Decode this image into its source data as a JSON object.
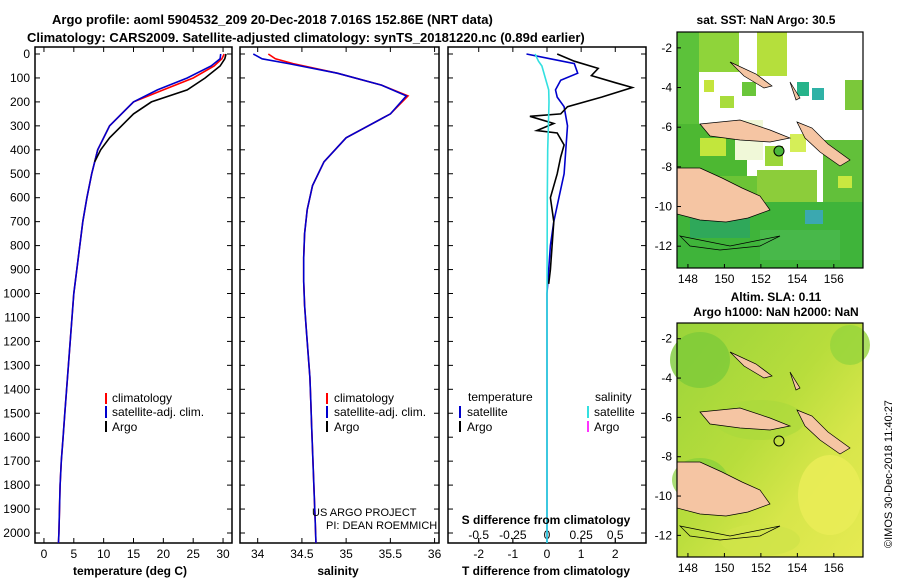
{
  "header": {
    "line1": "Argo profile: aoml 5904532_209 20-Dec-2018 7.016S 152.86E (NRT data)",
    "line2": "Climatology: CARS2009. Satellite-adjusted climatology: synTS_20181220.nc (0.89d earlier)"
  },
  "colors": {
    "climatology": "#ff0000",
    "satellite": "#0000cc",
    "argo": "#000000",
    "sat_salinity": "#33e0e0",
    "argo_salinity": "#ff33ff",
    "land": "#f5c5a3"
  },
  "depth_ticks": [
    "0",
    "100",
    "200",
    "300",
    "400",
    "500",
    "600",
    "700",
    "800",
    "900",
    "1000",
    "1100",
    "1200",
    "1300",
    "1400",
    "1500",
    "1600",
    "1700",
    "1800",
    "1900",
    "2000"
  ],
  "panel1": {
    "xlabel": "temperature (deg C)",
    "xticks": [
      "0",
      "5",
      "10",
      "15",
      "20",
      "25",
      "30"
    ],
    "legend": [
      "climatology",
      "satellite-adj. clim.",
      "Argo"
    ]
  },
  "panel2": {
    "xlabel": "salinity",
    "xticks": [
      "34",
      "34.5",
      "35",
      "35.5",
      "36"
    ],
    "legend": [
      "climatology",
      "satellite-adj. clim.",
      "Argo"
    ],
    "credit1": "US ARGO PROJECT",
    "credit2": "PI: DEAN ROEMMICH"
  },
  "panel3": {
    "xlabel": "T difference from climatology",
    "top_label": "S difference from climatology",
    "xticks": [
      "-2",
      "-1",
      "0",
      "1",
      "2"
    ],
    "sticks": [
      "-0.5",
      "-0.25",
      "0",
      "0.25",
      "0.5"
    ],
    "legend_left_title": "temperature",
    "legend_left": [
      "satellite",
      "Argo"
    ],
    "legend_right_title": "salinity",
    "legend_right": [
      "satellite",
      "Argo"
    ]
  },
  "map1": {
    "title": "sat. SST: NaN Argo: 30.5",
    "xticks": [
      "148",
      "150",
      "152",
      "154",
      "156"
    ],
    "yticks": [
      "-2",
      "-4",
      "-6",
      "-8",
      "-10",
      "-12"
    ]
  },
  "map2": {
    "title1": "Altim. SLA: 0.11",
    "title2": "Argo h1000: NaN h2000: NaN",
    "xticks": [
      "148",
      "150",
      "152",
      "154",
      "156"
    ],
    "yticks": [
      "-2",
      "-4",
      "-6",
      "-8",
      "-10",
      "-12"
    ]
  },
  "stamp": "©IMOS 30-Dec-2018 11:40:27",
  "chart_data": [
    {
      "type": "line",
      "title": "temperature profile",
      "xlabel": "temperature (deg C)",
      "ylabel": "depth",
      "xlim": [
        -1.5,
        31.5
      ],
      "ylim": [
        2080,
        0
      ],
      "series": [
        {
          "name": "climatology",
          "x": [
            30.2,
            29.8,
            28.5,
            25,
            20,
            15,
            11,
            9,
            8,
            7.2,
            6.5,
            6,
            5.5,
            5,
            4.7,
            4.4,
            4.1,
            3.8,
            3.5,
            3.2,
            2.9,
            2.7,
            2.6,
            2.5,
            2.4
          ],
          "y": [
            0,
            20,
            50,
            100,
            150,
            200,
            300,
            400,
            500,
            600,
            700,
            800,
            900,
            1000,
            1100,
            1200,
            1300,
            1400,
            1500,
            1600,
            1700,
            1800,
            1900,
            2000,
            2060
          ]
        },
        {
          "name": "satellite-adj. clim.",
          "x": [
            29.6,
            29.5,
            28,
            24,
            19,
            15,
            11,
            9,
            8,
            7.2,
            6.5,
            6,
            5.5,
            5,
            4.7,
            4.4,
            4.1,
            3.8,
            3.5,
            3.2,
            2.9,
            2.7,
            2.6,
            2.5,
            2.4
          ],
          "y": [
            0,
            20,
            50,
            100,
            150,
            200,
            300,
            400,
            500,
            600,
            700,
            800,
            900,
            1000,
            1100,
            1200,
            1300,
            1400,
            1500,
            1600,
            1700,
            1800,
            1900,
            2000,
            2060
          ]
        },
        {
          "name": "Argo",
          "x": [
            30.5,
            30.3,
            29.5,
            27,
            24,
            18,
            15,
            13,
            11,
            9.5,
            8.5
          ],
          "y": [
            0,
            20,
            50,
            100,
            150,
            200,
            250,
            300,
            350,
            400,
            450
          ]
        }
      ]
    },
    {
      "type": "line",
      "title": "salinity profile",
      "xlabel": "salinity",
      "ylabel": "depth",
      "xlim": [
        33.8,
        36.05
      ],
      "ylim": [
        2080,
        0
      ],
      "series": [
        {
          "name": "climatology",
          "x": [
            34.12,
            34.2,
            34.4,
            34.9,
            35.4,
            35.7,
            35.5,
            35.0,
            34.75,
            34.62,
            34.56,
            34.53,
            34.52,
            34.52,
            34.53,
            34.55,
            34.57,
            34.59,
            34.6,
            34.61,
            34.62,
            34.63,
            34.64,
            34.65,
            34.66
          ],
          "y": [
            0,
            20,
            40,
            80,
            130,
            175,
            250,
            350,
            450,
            550,
            650,
            750,
            850,
            950,
            1050,
            1150,
            1250,
            1350,
            1450,
            1550,
            1650,
            1750,
            1850,
            1950,
            2060
          ]
        },
        {
          "name": "satellite-adj. clim.",
          "x": [
            33.95,
            34.05,
            34.35,
            34.9,
            35.4,
            35.68,
            35.5,
            35.0,
            34.75,
            34.62,
            34.56,
            34.53,
            34.52,
            34.52,
            34.53,
            34.55,
            34.57,
            34.59,
            34.6,
            34.61,
            34.62,
            34.63,
            34.64,
            34.65,
            34.66
          ],
          "y": [
            0,
            20,
            40,
            80,
            130,
            175,
            250,
            350,
            450,
            550,
            650,
            750,
            850,
            950,
            1050,
            1150,
            1250,
            1350,
            1450,
            1550,
            1650,
            1750,
            1850,
            1950,
            2060
          ]
        }
      ]
    },
    {
      "type": "line",
      "title": "T difference from climatology",
      "xlabel": "T difference from climatology",
      "ylabel": "depth",
      "xlim": [
        -2.9,
        2.9
      ],
      "ylim": [
        2080,
        0
      ],
      "series": [
        {
          "name": "satellite T",
          "x": [
            -0.6,
            0.1,
            0.8,
            0.9,
            0.4,
            0.25,
            0.3,
            0.5,
            0.6,
            0.55,
            0.5,
            0.35,
            0.2,
            0.1,
            0.05,
            0.0,
            0.0,
            0.0,
            0.0,
            0.0
          ],
          "y": [
            0,
            20,
            40,
            80,
            110,
            150,
            180,
            220,
            300,
            400,
            500,
            600,
            700,
            800,
            900,
            1000,
            1200,
            1500,
            1800,
            2060
          ]
        },
        {
          "name": "Argo T",
          "x": [
            0.3,
            0.8,
            1.5,
            1.3,
            2.0,
            2.5,
            1.6,
            0.6,
            0.4,
            -0.5,
            0.2,
            -0.3,
            0.3,
            0.5,
            0.4,
            0.3,
            0.1,
            0.2,
            0.15,
            0.1,
            0.05
          ],
          "y": [
            0,
            30,
            60,
            90,
            120,
            140,
            180,
            220,
            250,
            260,
            290,
            320,
            330,
            380,
            430,
            500,
            600,
            700,
            800,
            900,
            960
          ]
        },
        {
          "name": "satellite S",
          "x": [
            -0.35,
            -0.25,
            -0.15,
            -0.05,
            0.05,
            0.06,
            0.04,
            0.02,
            0.01,
            0.0,
            0.0
          ],
          "y": [
            0,
            30,
            50,
            100,
            150,
            200,
            300,
            400,
            600,
            1000,
            2060
          ]
        }
      ]
    }
  ]
}
